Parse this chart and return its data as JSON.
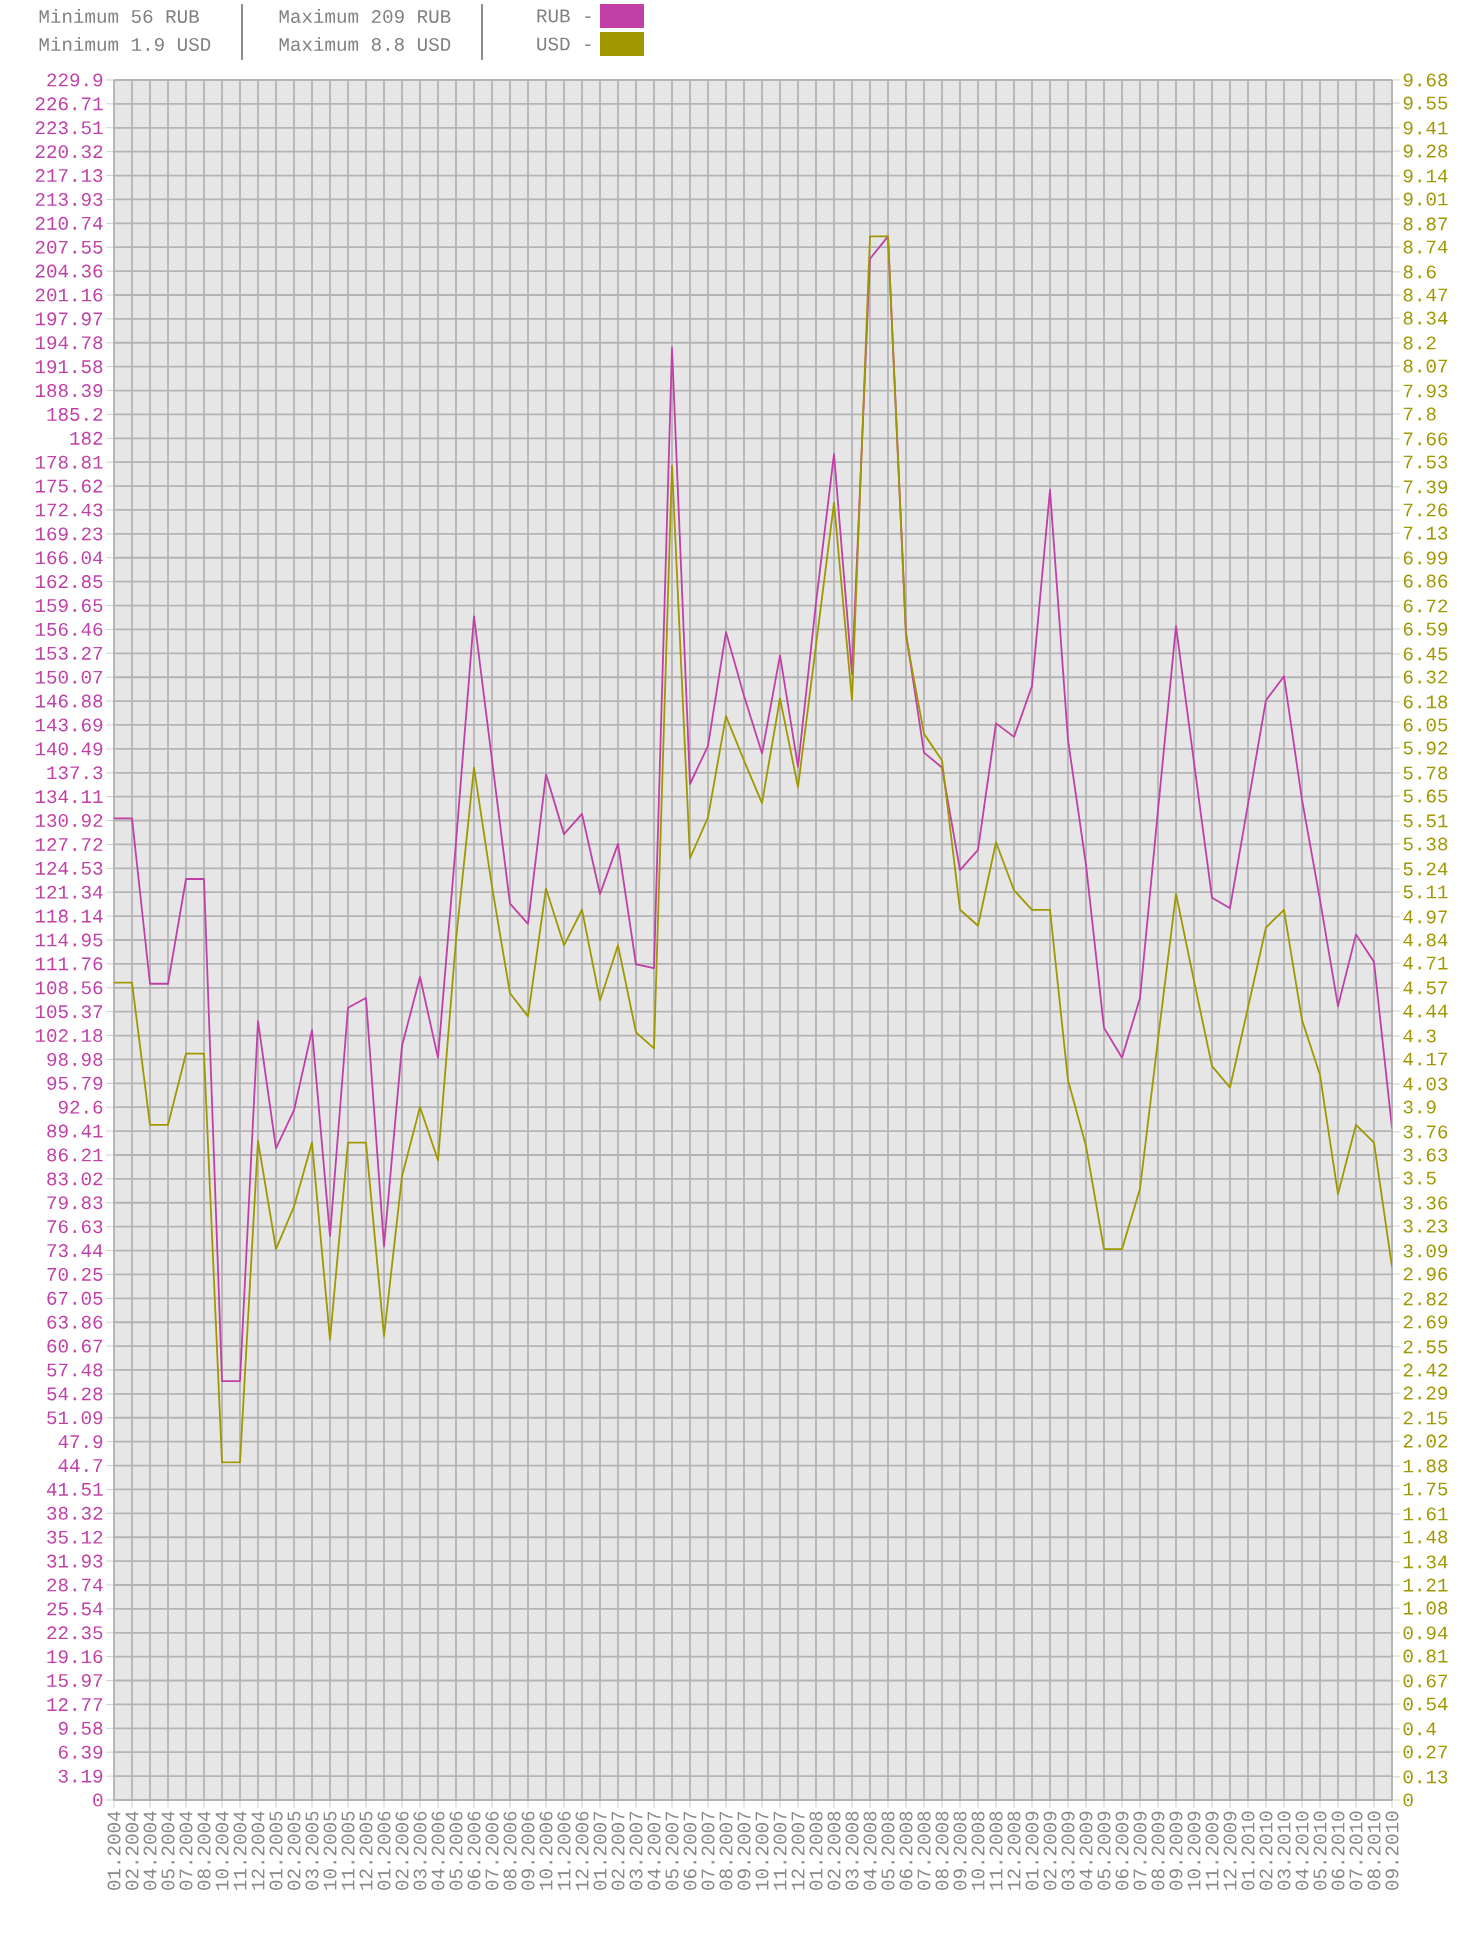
{
  "chart_data": {
    "type": "line",
    "categories": [
      "01.2004",
      "02.2004",
      "04.2004",
      "05.2004",
      "07.2004",
      "08.2004",
      "10.2004",
      "11.2004",
      "12.2004",
      "01.2005",
      "02.2005",
      "03.2005",
      "10.2005",
      "11.2005",
      "12.2005",
      "01.2006",
      "02.2006",
      "03.2006",
      "04.2006",
      "05.2006",
      "06.2006",
      "07.2006",
      "08.2006",
      "09.2006",
      "10.2006",
      "11.2006",
      "12.2006",
      "01.2007",
      "02.2007",
      "03.2007",
      "04.2007",
      "05.2007",
      "06.2007",
      "07.2007",
      "08.2007",
      "09.2007",
      "10.2007",
      "11.2007",
      "12.2007",
      "01.2008",
      "02.2008",
      "03.2008",
      "04.2008",
      "05.2008",
      "06.2008",
      "07.2008",
      "08.2008",
      "09.2008",
      "10.2008",
      "11.2008",
      "12.2008",
      "01.2009",
      "02.2009",
      "03.2009",
      "04.2009",
      "05.2009",
      "06.2009",
      "07.2009",
      "08.2009",
      "09.2009",
      "10.2009",
      "11.2009",
      "12.2009",
      "01.2010",
      "02.2010",
      "03.2010",
      "04.2010",
      "05.2010",
      "06.2010",
      "07.2010",
      "08.2010",
      "09.2010"
    ],
    "series": [
      {
        "name": "RUB -",
        "color": "#c040a8",
        "values": [
          131.2,
          131.2,
          109.1,
          109.1,
          123.1,
          123.1,
          56,
          56,
          104.1,
          87.1,
          92.2,
          102.9,
          75.4,
          105.9,
          107.2,
          74.0,
          100.8,
          110,
          99.2,
          128,
          158.2,
          139,
          119.8,
          117.1,
          137.1,
          129.1,
          131.8,
          121.1,
          127.8,
          111.7,
          111.2,
          194.1,
          135.8,
          140.9,
          156.1,
          147.6,
          139.9,
          153,
          138.1,
          160,
          179.9,
          150.5,
          206,
          209,
          156,
          140,
          138,
          124.3,
          127,
          143.9,
          142.1,
          148.9,
          175.1,
          141.7,
          125,
          103.2,
          99.2,
          107.2,
          132.3,
          156.9,
          138.7,
          120.6,
          119.2,
          133.1,
          147,
          150.2,
          133.7,
          120.3,
          106.1,
          115.7,
          112,
          89.8
        ]
      },
      {
        "name": "USD -",
        "color": "#a09800",
        "axis": "y2",
        "values": [
          4.6,
          4.6,
          3.8,
          3.8,
          4.2,
          4.2,
          1.9,
          1.9,
          3.71,
          3.1,
          3.34,
          3.7,
          2.59,
          3.7,
          3.7,
          2.61,
          3.51,
          3.9,
          3.6,
          4.84,
          5.81,
          5.14,
          4.54,
          4.41,
          5.13,
          4.81,
          5.01,
          4.5,
          4.81,
          4.32,
          4.23,
          7.51,
          5.3,
          5.53,
          6.1,
          5.85,
          5.61,
          6.2,
          5.7,
          6.5,
          7.3,
          6.19,
          8.8,
          8.8,
          6.55,
          6.0,
          5.85,
          5.01,
          4.92,
          5.39,
          5.12,
          5.01,
          5.01,
          4.05,
          3.68,
          3.1,
          3.1,
          3.44,
          4.28,
          5.1,
          4.61,
          4.13,
          4.01,
          4.46,
          4.91,
          5.01,
          4.39,
          4.08,
          3.41,
          3.8,
          3.7,
          3.0
        ]
      }
    ],
    "ylim": [
      0,
      229.9
    ],
    "yticks": [
      0,
      3.19,
      6.39,
      9.58,
      12.77,
      15.97,
      19.16,
      22.35,
      25.54,
      28.74,
      31.93,
      35.12,
      38.32,
      41.51,
      44.7,
      47.9,
      51.09,
      54.28,
      57.48,
      60.67,
      63.86,
      67.05,
      70.25,
      73.44,
      76.63,
      79.83,
      83.02,
      86.21,
      89.41,
      92.6,
      95.79,
      98.98,
      102.18,
      105.37,
      108.56,
      111.76,
      114.95,
      118.14,
      121.34,
      124.53,
      127.72,
      130.92,
      134.11,
      137.3,
      140.49,
      143.69,
      146.88,
      150.07,
      153.27,
      156.46,
      159.65,
      162.85,
      166.04,
      169.23,
      172.43,
      175.62,
      178.81,
      182,
      185.2,
      188.39,
      191.58,
      194.78,
      197.97,
      201.16,
      204.36,
      207.55,
      210.74,
      213.93,
      217.13,
      220.32,
      223.51,
      226.71,
      229.9
    ],
    "y2lim": [
      0,
      9.68
    ],
    "y2ticks": [
      0,
      0.13,
      0.27,
      0.4,
      0.54,
      0.67,
      0.81,
      0.94,
      1.08,
      1.21,
      1.34,
      1.48,
      1.61,
      1.75,
      1.88,
      2.02,
      2.15,
      2.29,
      2.42,
      2.55,
      2.69,
      2.82,
      2.96,
      3.09,
      3.23,
      3.36,
      3.5,
      3.63,
      3.76,
      3.9,
      4.03,
      4.17,
      4.3,
      4.44,
      4.57,
      4.71,
      4.84,
      4.97,
      5.11,
      5.24,
      5.38,
      5.51,
      5.65,
      5.78,
      5.92,
      6.05,
      6.18,
      6.32,
      6.45,
      6.59,
      6.72,
      6.86,
      6.99,
      7.13,
      7.26,
      7.39,
      7.53,
      7.66,
      7.8,
      7.93,
      8.07,
      8.2,
      8.34,
      8.47,
      8.6,
      8.74,
      8.87,
      9.01,
      9.14,
      9.28,
      9.41,
      9.55,
      9.68
    ],
    "grid": true,
    "legend": "top",
    "annotations": [
      "Minimum 56 RUB",
      "Minimum 1.9 USD",
      "Maximum 209 RUB",
      "Maximum 8.8 USD"
    ]
  }
}
